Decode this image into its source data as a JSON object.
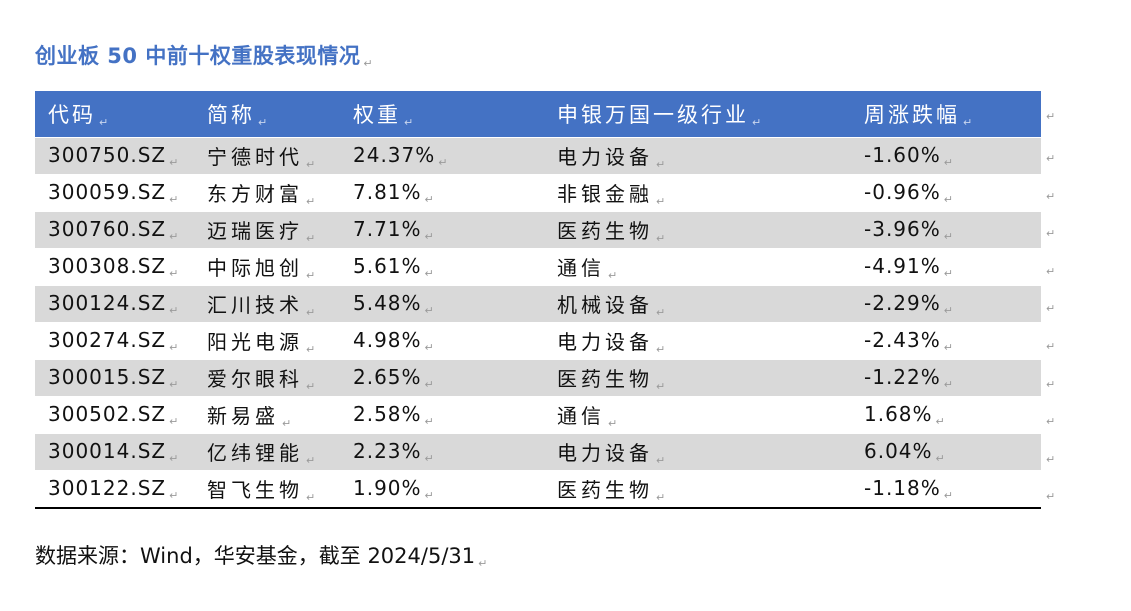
{
  "title": "创业板 50 中前十权重股表现情况",
  "para_mark": "↵",
  "table": {
    "headers": [
      "代码",
      "简称",
      "权重",
      "申银万国一级行业",
      "周涨跌幅"
    ],
    "rows": [
      [
        "300750.SZ",
        "宁德时代",
        "24.37%",
        "电力设备",
        "-1.60%"
      ],
      [
        "300059.SZ",
        "东方财富",
        "7.81%",
        "非银金融",
        "-0.96%"
      ],
      [
        "300760.SZ",
        "迈瑞医疗",
        "7.71%",
        "医药生物",
        "-3.96%"
      ],
      [
        "300308.SZ",
        "中际旭创",
        "5.61%",
        "通信",
        "-4.91%"
      ],
      [
        "300124.SZ",
        "汇川技术",
        "5.48%",
        "机械设备",
        "-2.29%"
      ],
      [
        "300274.SZ",
        "阳光电源",
        "4.98%",
        "电力设备",
        "-2.43%"
      ],
      [
        "300015.SZ",
        "爱尔眼科",
        "2.65%",
        "医药生物",
        "-1.22%"
      ],
      [
        "300502.SZ",
        "新易盛",
        "2.58%",
        "通信",
        "1.68%"
      ],
      [
        "300014.SZ",
        "亿纬锂能",
        "2.23%",
        "电力设备",
        "6.04%"
      ],
      [
        "300122.SZ",
        "智飞生物",
        "1.90%",
        "医药生物",
        "-1.18%"
      ]
    ]
  },
  "source": "数据来源：Wind，华安基金，截至 2024/5/31",
  "colors": {
    "header_bg": "#4472c4",
    "title": "#4472c4",
    "stripe": "#d9d9d9"
  }
}
